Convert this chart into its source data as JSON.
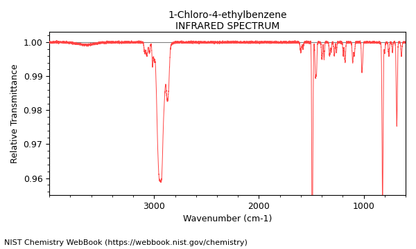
{
  "title_line1": "1-Chloro-4-ethylbenzene",
  "title_line2": "INFRARED SPECTRUM",
  "xlabel": "Wavenumber (cm-1)",
  "ylabel": "Relative Transmittance",
  "footnote": "NIST Chemistry WebBook (https://webbook.nist.gov/chemistry)",
  "xlim": [
    4000,
    600
  ],
  "ylim": [
    0.955,
    1.003
  ],
  "yticks": [
    0.96,
    0.97,
    0.98,
    0.99,
    1.0
  ],
  "xticks": [
    3000,
    2000,
    1000
  ],
  "line_color": "#FF4444",
  "bg_color": "#FFFFFF",
  "title_fontsize": 10,
  "label_fontsize": 9,
  "tick_fontsize": 9,
  "footnote_fontsize": 8
}
